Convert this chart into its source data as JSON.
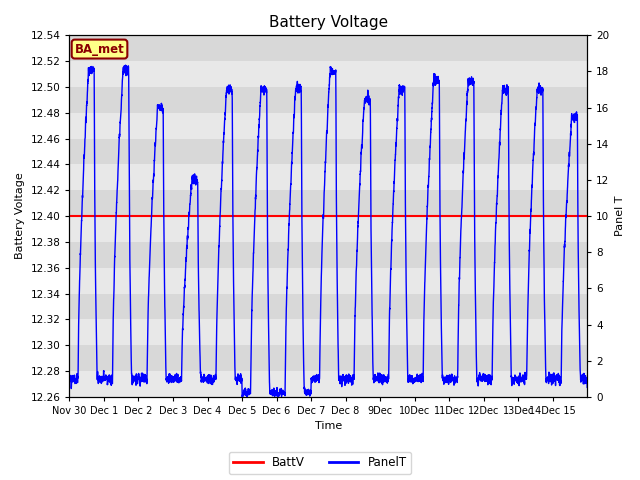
{
  "title": "Battery Voltage",
  "xlabel": "Time",
  "ylabel_left": "Battery Voltage",
  "ylabel_right": "Panel T",
  "ylim_left": [
    12.26,
    12.54
  ],
  "ylim_right": [
    0,
    20
  ],
  "batt_v": 12.4,
  "xtick_labels": [
    "Nov 30",
    "Dec 1",
    "Dec 2",
    "Dec 3",
    "Dec 4",
    "Dec 5",
    "Dec 6",
    "Dec 7",
    "Dec 8",
    "9Dec",
    "10Dec",
    "11Dec",
    "12Dec",
    "13Dec",
    "14Dec 15"
  ],
  "xtick_positions": [
    0,
    1,
    2,
    3,
    4,
    5,
    6,
    7,
    8,
    9,
    10,
    11,
    12,
    13,
    14
  ],
  "annotation_text": "BA_met",
  "annotation_bg": "#FFFF88",
  "annotation_border": "#8B0000",
  "bg_stripe_dark": "#D8D8D8",
  "bg_stripe_light": "#E8E8E8",
  "line_batt_color": "red",
  "line_panel_color": "blue",
  "legend_batt": "BattV",
  "legend_panel": "PanelT",
  "daily_peaks": [
    18,
    18,
    16,
    12,
    17,
    17,
    17,
    18,
    16.5,
    17,
    17.5,
    17.5,
    17,
    17,
    15.5
  ],
  "daily_mins": [
    1,
    1,
    1,
    1,
    1,
    0.2,
    0.2,
    1,
    1,
    1,
    1,
    1,
    1,
    1,
    1
  ]
}
